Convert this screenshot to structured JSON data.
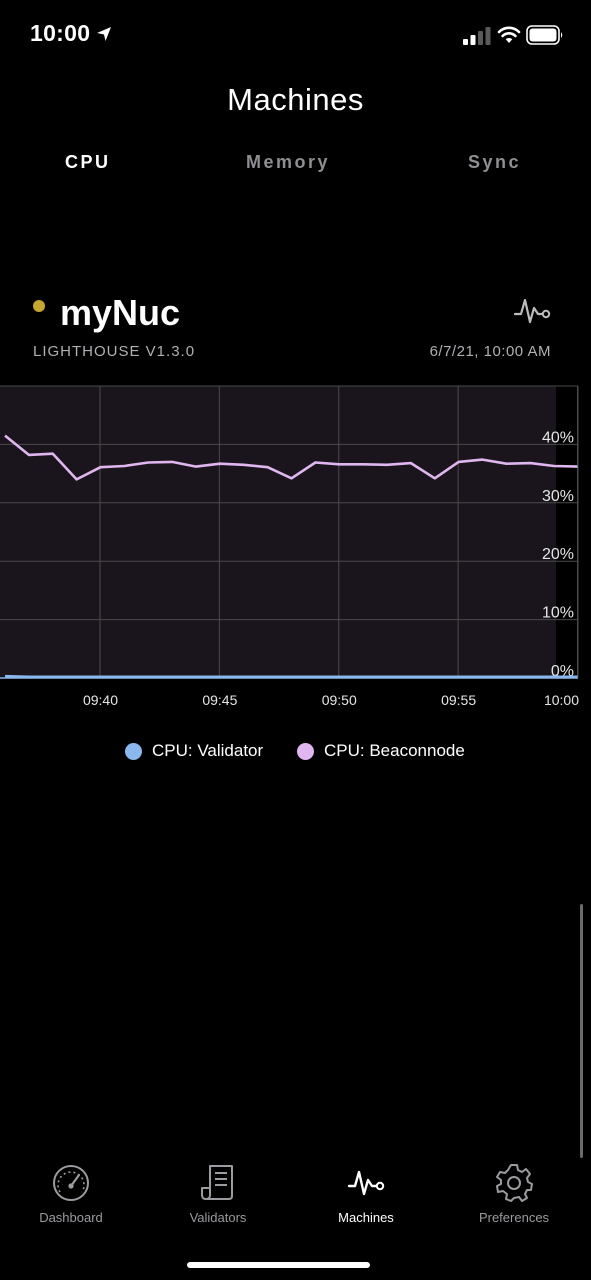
{
  "status_bar": {
    "time": "10:00",
    "icons": [
      "location-arrow-icon",
      "signal-icon",
      "wifi-icon",
      "battery-icon"
    ]
  },
  "header": {
    "title": "Machines",
    "tabs": [
      {
        "label": "CPU",
        "active": true
      },
      {
        "label": "Memory",
        "active": false
      },
      {
        "label": "Sync",
        "active": false
      }
    ]
  },
  "machine": {
    "name": "myNuc",
    "status_color": "#c6a730",
    "client": "LIGHTHOUSE V1.3.0",
    "timestamp": "6/7/21, 10:00 AM",
    "icon": "activity-pulse-icon"
  },
  "chart_data": {
    "type": "line",
    "title": "",
    "xlabel": "",
    "ylabel": "",
    "x_tick_labels": [
      "09:40",
      "09:45",
      "09:50",
      "09:55",
      "10:00"
    ],
    "y_tick_labels": [
      "0%",
      "10%",
      "20%",
      "30%",
      "40%"
    ],
    "ylim": [
      0,
      50
    ],
    "grid": true,
    "legend_position": "bottom",
    "x_minutes": [
      36,
      37,
      38,
      39,
      40,
      41,
      42,
      43,
      44,
      45,
      46,
      47,
      48,
      49,
      50,
      51,
      52,
      53,
      54,
      55,
      56,
      57,
      58,
      59,
      60
    ],
    "series": [
      {
        "name": "CPU: Validator",
        "color": "#8ab8ec",
        "values": [
          0.3,
          0.2,
          0.2,
          0.2,
          0.2,
          0.2,
          0.2,
          0.2,
          0.2,
          0.2,
          0.2,
          0.2,
          0.2,
          0.2,
          0.2,
          0.2,
          0.2,
          0.2,
          0.2,
          0.2,
          0.2,
          0.2,
          0.2,
          0.2,
          0.2
        ]
      },
      {
        "name": "CPU: Beaconnode",
        "color": "#e0b6f0",
        "values": [
          41.5,
          38.2,
          38.4,
          34.0,
          36.1,
          36.3,
          36.9,
          37.0,
          36.2,
          36.7,
          36.5,
          36.1,
          34.2,
          36.9,
          36.6,
          36.6,
          36.5,
          36.8,
          34.2,
          37.0,
          37.4,
          36.7,
          36.8,
          36.3,
          36.2
        ]
      }
    ]
  },
  "legend": [
    {
      "label": "CPU: Validator",
      "color": "#8ab8ec"
    },
    {
      "label": "CPU: Beaconnode",
      "color": "#e0b6f0"
    }
  ],
  "nav": [
    {
      "label": "Dashboard",
      "icon": "speedometer-icon",
      "active": false
    },
    {
      "label": "Validators",
      "icon": "receipt-icon",
      "active": false
    },
    {
      "label": "Machines",
      "icon": "activity-pulse-icon",
      "active": true
    },
    {
      "label": "Preferences",
      "icon": "gear-icon",
      "active": false
    }
  ]
}
